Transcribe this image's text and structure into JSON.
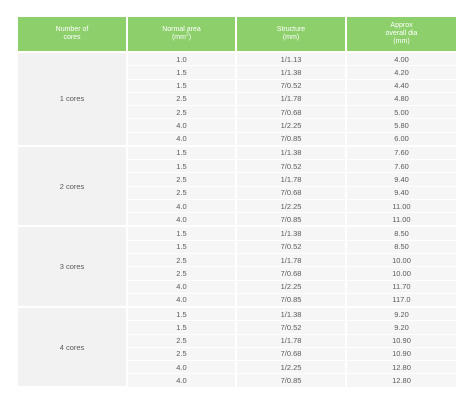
{
  "header": {
    "col1": [
      "Number of",
      "cores"
    ],
    "col2": [
      "Normal area",
      "(mm",
      "2",
      ")"
    ],
    "col3": [
      "Structure",
      "(mm)"
    ],
    "col4": [
      "Approx",
      "overall dia",
      "(mm)"
    ]
  },
  "groups": [
    {
      "label": "1 cores",
      "rows": [
        [
          "1.0",
          "1/1.13",
          "4.00"
        ],
        [
          "1.5",
          "1/1.38",
          "4.20"
        ],
        [
          "1.5",
          "7/0.52",
          "4.40"
        ],
        [
          "2.5",
          "1/1.78",
          "4.80"
        ],
        [
          "2.5",
          "7/0.68",
          "5.00"
        ],
        [
          "4.0",
          "1/2.25",
          "5.80"
        ],
        [
          "4.0",
          "7/0.85",
          "6.00"
        ]
      ]
    },
    {
      "label": "2 cores",
      "rows": [
        [
          "1.5",
          "1/1.38",
          "7.60"
        ],
        [
          "1.5",
          "7/0.52",
          "7.60"
        ],
        [
          "2.5",
          "1/1.78",
          "9.40"
        ],
        [
          "2.5",
          "7/0.68",
          "9.40"
        ],
        [
          "4.0",
          "1/2.25",
          "11.00"
        ],
        [
          "4.0",
          "7/0.85",
          "11.00"
        ]
      ]
    },
    {
      "label": "3 cores",
      "rows": [
        [
          "1.5",
          "1/1.38",
          "8.50"
        ],
        [
          "1.5",
          "7/0.52",
          "8.50"
        ],
        [
          "2.5",
          "1/1.78",
          "10.00"
        ],
        [
          "2.5",
          "7/0.68",
          "10.00"
        ],
        [
          "4.0",
          "1/2.25",
          "11.70"
        ],
        [
          "4.0",
          "7/0.85",
          "117.0"
        ]
      ]
    },
    {
      "label": "4 cores",
      "rows": [
        [
          "1.5",
          "1/1.38",
          "9.20"
        ],
        [
          "1.5",
          "7/0.52",
          "9.20"
        ],
        [
          "2.5",
          "1/1.78",
          "10.90"
        ],
        [
          "2.5",
          "7/0.68",
          "10.90"
        ],
        [
          "4.0",
          "1/2.25",
          "12.80"
        ],
        [
          "4.0",
          "7/0.85",
          "12.80"
        ]
      ]
    }
  ]
}
